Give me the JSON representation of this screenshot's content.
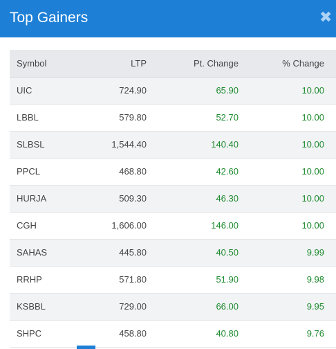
{
  "dialog": {
    "title": "Top Gainers",
    "close_symbol": "✖"
  },
  "table": {
    "headers": {
      "symbol": "Symbol",
      "ltp": "LTP",
      "pt_change": "Pt. Change",
      "pct_change": "% Change"
    },
    "rows": [
      {
        "symbol": "UIC",
        "ltp": "724.90",
        "pt_change": "65.90",
        "pct_change": "10.00"
      },
      {
        "symbol": "LBBL",
        "ltp": "579.80",
        "pt_change": "52.70",
        "pct_change": "10.00"
      },
      {
        "symbol": "SLBSL",
        "ltp": "1,544.40",
        "pt_change": "140.40",
        "pct_change": "10.00"
      },
      {
        "symbol": "PPCL",
        "ltp": "468.80",
        "pt_change": "42.60",
        "pct_change": "10.00"
      },
      {
        "symbol": "HURJA",
        "ltp": "509.30",
        "pt_change": "46.30",
        "pct_change": "10.00"
      },
      {
        "symbol": "CGH",
        "ltp": "1,606.00",
        "pt_change": "146.00",
        "pct_change": "10.00"
      },
      {
        "symbol": "SAHAS",
        "ltp": "445.80",
        "pt_change": "40.50",
        "pct_change": "9.99"
      },
      {
        "symbol": "RRHP",
        "ltp": "571.80",
        "pt_change": "51.90",
        "pct_change": "9.98"
      },
      {
        "symbol": "KSBBL",
        "ltp": "729.00",
        "pt_change": "66.00",
        "pct_change": "9.95"
      },
      {
        "symbol": "SHPC",
        "ltp": "458.80",
        "pt_change": "40.80",
        "pct_change": "9.76"
      }
    ]
  },
  "colors": {
    "header_bg": "#1d7fd6",
    "positive_text": "#1c8a2e"
  }
}
